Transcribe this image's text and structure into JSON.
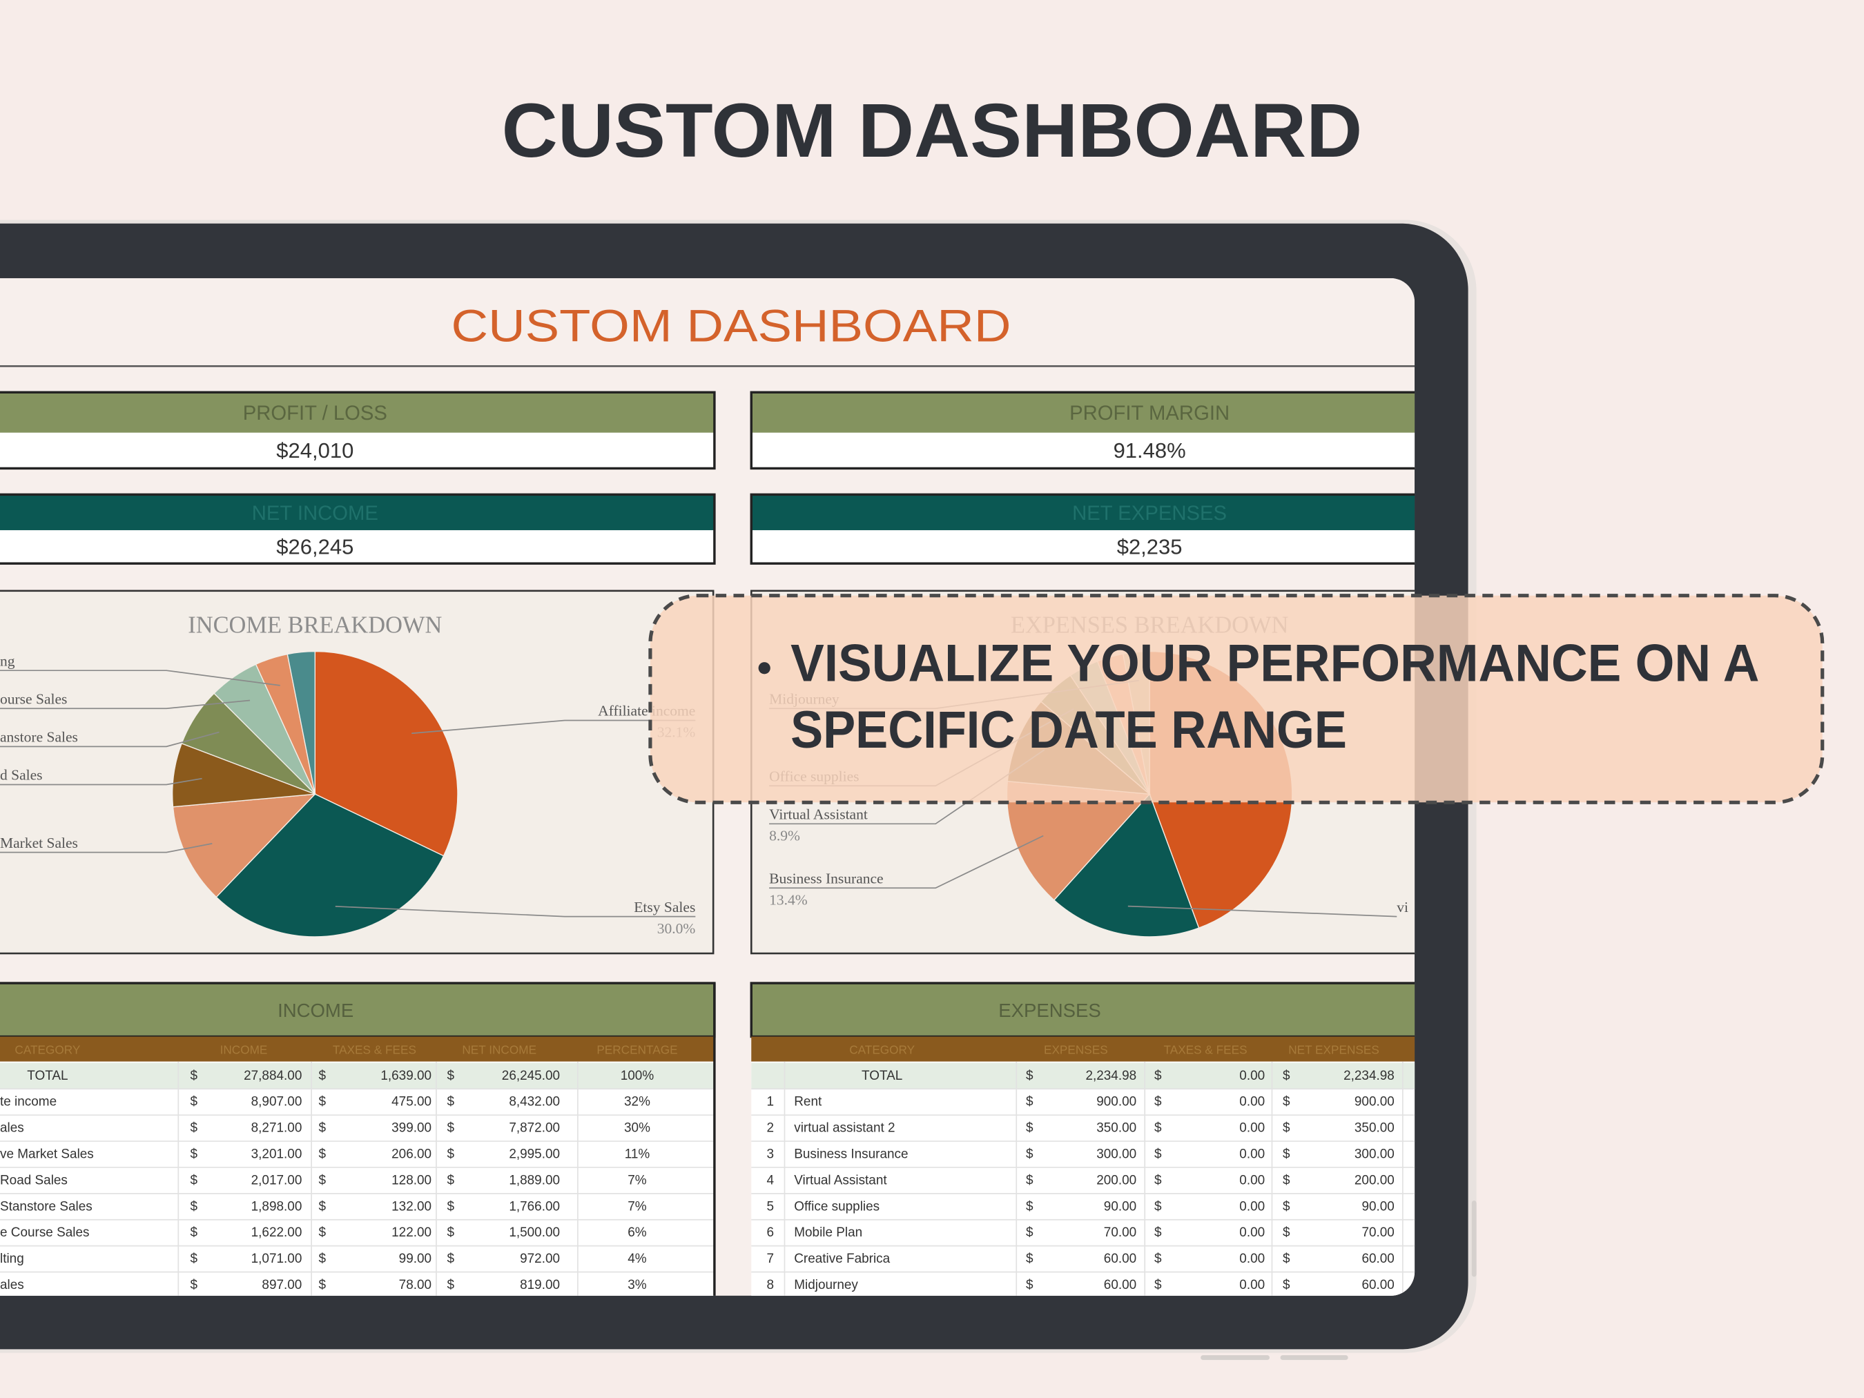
{
  "heading": "CUSTOM DASHBOARD",
  "sheet": {
    "title": "CUSTOM DASHBOARD",
    "kpis": [
      {
        "label": "PROFIT / LOSS",
        "value": "$24,010"
      },
      {
        "label": "PROFIT MARGIN",
        "value": "91.48%"
      },
      {
        "label": "NET INCOME",
        "value": "$26,245"
      },
      {
        "label": "NET EXPENSES",
        "value": "$2,235"
      }
    ]
  },
  "chart_data": [
    {
      "type": "pie",
      "title": "INCOME BREAKDOWN",
      "categories": [
        "Affiliate income",
        "Etsy Sales",
        "Market Sales",
        "d Sales",
        "anstore Sales",
        "ourse Sales",
        "ng",
        null
      ],
      "values": [
        32.1,
        30.0,
        11.4,
        7.2,
        6.7,
        5.7,
        3.7,
        3.1
      ],
      "value_labels": [
        "32.1%",
        "30.0%",
        null,
        null,
        null,
        null,
        null,
        null
      ],
      "colors": [
        "#d4561e",
        "#0b5853",
        "#e0926a",
        "#8b5a1c",
        "#7f8c55",
        "#9dbfa9",
        "#e38d62",
        "#4a8b8c"
      ]
    },
    {
      "type": "pie",
      "title": "EXPENSES BREAKDOWN",
      "categories": [
        null,
        "vi",
        "Business Insurance",
        "Virtual Assistant",
        "Office supplies",
        null,
        null,
        "Midjourney"
      ],
      "values": [
        40.3,
        15.7,
        13.4,
        8.9,
        4.0,
        3.1,
        2.7,
        2.7
      ],
      "value_labels": [
        null,
        null,
        "13.4%",
        "8.9%",
        null,
        null,
        null,
        null
      ],
      "colors": [
        "#d4561e",
        "#0b5853",
        "#e0926a",
        "#8b5a1c",
        "#7f8c55",
        "#9dbfa9",
        "#e8a47e",
        "#c9c19a"
      ]
    }
  ],
  "currency": "$",
  "income_table": {
    "title": "INCOME",
    "columns": [
      "CATEGORY",
      "INCOME",
      "TAXES & FEES",
      "NET INCOME",
      "PERCENTAGE"
    ],
    "total": [
      "TOTAL",
      "27,884.00",
      "1,639.00",
      "26,245.00",
      "100%"
    ],
    "rows": [
      [
        "te income",
        "8,907.00",
        "475.00",
        "8,432.00",
        "32%"
      ],
      [
        "ales",
        "8,271.00",
        "399.00",
        "7,872.00",
        "30%"
      ],
      [
        "ve Market Sales",
        "3,201.00",
        "206.00",
        "2,995.00",
        "11%"
      ],
      [
        "Road Sales",
        "2,017.00",
        "128.00",
        "1,889.00",
        "7%"
      ],
      [
        " Stanstore Sales",
        "1,898.00",
        "132.00",
        "1,766.00",
        "7%"
      ],
      [
        "e Course Sales",
        "1,622.00",
        "122.00",
        "1,500.00",
        "6%"
      ],
      [
        "lting",
        "1,071.00",
        "99.00",
        "972.00",
        "4%"
      ],
      [
        "ales",
        "897.00",
        "78.00",
        "819.00",
        "3%"
      ]
    ]
  },
  "expenses_table": {
    "title": "EXPENSES",
    "columns": [
      "CATEGORY",
      "EXPENSES",
      "TAXES & FEES",
      "NET EXPENSES"
    ],
    "total": [
      "TOTAL",
      "2,234.98",
      "0.00",
      "2,234.98"
    ],
    "rows": [
      [
        "1",
        "Rent",
        "900.00",
        "0.00",
        "900.00"
      ],
      [
        "2",
        "virtual assistant 2",
        "350.00",
        "0.00",
        "350.00"
      ],
      [
        "3",
        "Business Insurance",
        "300.00",
        "0.00",
        "300.00"
      ],
      [
        "4",
        "Virtual Assistant",
        "200.00",
        "0.00",
        "200.00"
      ],
      [
        "5",
        "Office supplies",
        "90.00",
        "0.00",
        "90.00"
      ],
      [
        "6",
        "Mobile Plan",
        "70.00",
        "0.00",
        "70.00"
      ],
      [
        "7",
        "Creative Fabrica",
        "60.00",
        "0.00",
        "60.00"
      ],
      [
        "8",
        "Midjourney",
        "60.00",
        "0.00",
        "60.00"
      ]
    ]
  },
  "callout": {
    "lines": [
      "VISUALIZE YOUR PERFORMANCE ON A",
      "SPECIFIC DATE RANGE"
    ]
  }
}
